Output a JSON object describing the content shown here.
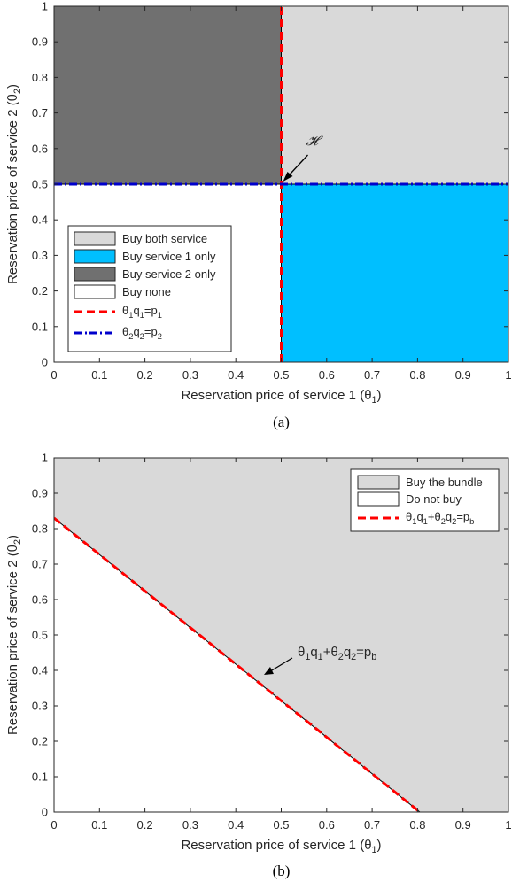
{
  "chart_data": [
    {
      "type": "area",
      "caption": "(a)",
      "xlabel": "Reservation price of service 1",
      "xlabel_symbol": "θ",
      "xlabel_sub": "1",
      "ylabel": "Reservation price of service 2",
      "ylabel_symbol": "θ",
      "ylabel_sub": "2",
      "xlim": [
        0,
        1
      ],
      "ylim": [
        0,
        1
      ],
      "xticks": [
        "0",
        "0.1",
        "0.2",
        "0.3",
        "0.4",
        "0.5",
        "0.6",
        "0.7",
        "0.8",
        "0.9",
        "1"
      ],
      "yticks": [
        "0",
        "0.1",
        "0.2",
        "0.3",
        "0.4",
        "0.5",
        "0.6",
        "0.7",
        "0.8",
        "0.9",
        "1"
      ],
      "p1": 0.5,
      "p2": 0.5,
      "regions": [
        {
          "name": "Buy both service",
          "color": "#d9d9d9",
          "x": [
            0.5,
            1
          ],
          "y": [
            0.5,
            1
          ]
        },
        {
          "name": "Buy service 1 only",
          "color": "#00bfff",
          "x": [
            0.5,
            1
          ],
          "y": [
            0,
            0.5
          ]
        },
        {
          "name": "Buy service 2 only",
          "color": "#707070",
          "x": [
            0,
            0.5
          ],
          "y": [
            0.5,
            1
          ]
        },
        {
          "name": "Buy none",
          "color": "#ffffff",
          "x": [
            0,
            0.5
          ],
          "y": [
            0,
            0.5
          ]
        }
      ],
      "lines": [
        {
          "label_parts": [
            [
              "θ",
              ""
            ],
            [
              "1",
              "sub"
            ],
            [
              "q",
              ""
            ],
            [
              "1",
              "sub"
            ],
            [
              "=p",
              ""
            ],
            [
              "1",
              "sub"
            ]
          ],
          "color": "#ff0000",
          "style": "dashed",
          "orientation": "vertical",
          "value": 0.5
        },
        {
          "label_parts": [
            [
              "θ",
              ""
            ],
            [
              "2",
              "sub"
            ],
            [
              "q",
              ""
            ],
            [
              "2",
              "sub"
            ],
            [
              "=p",
              ""
            ],
            [
              "2",
              "sub"
            ]
          ],
          "color": "#0000cc",
          "style": "dashdot",
          "orientation": "horizontal",
          "value": 0.5
        }
      ],
      "annotation": {
        "text": "𝓗",
        "point": [
          0.5,
          0.5
        ]
      },
      "legend": "lower-left",
      "grid": false
    },
    {
      "type": "area",
      "caption": "(b)",
      "xlabel": "Reservation price of service 1",
      "xlabel_symbol": "θ",
      "xlabel_sub": "1",
      "ylabel": "Reservation price of service 2",
      "ylabel_symbol": "θ",
      "ylabel_sub": "2",
      "xlim": [
        0,
        1
      ],
      "ylim": [
        0,
        1
      ],
      "xticks": [
        "0",
        "0.1",
        "0.2",
        "0.3",
        "0.4",
        "0.5",
        "0.6",
        "0.7",
        "0.8",
        "0.9",
        "1"
      ],
      "yticks": [
        "0",
        "0.1",
        "0.2",
        "0.3",
        "0.4",
        "0.5",
        "0.6",
        "0.7",
        "0.8",
        "0.9",
        "1"
      ],
      "boundary": {
        "x": [
          0,
          0.805
        ],
        "y": [
          0.83,
          0
        ]
      },
      "regions": [
        {
          "name": "Buy the bundle",
          "color": "#d9d9d9",
          "side": "above"
        },
        {
          "name": "Do not buy",
          "color": "#ffffff",
          "side": "below"
        }
      ],
      "lines": [
        {
          "label_parts": [
            [
              "θ",
              ""
            ],
            [
              "1",
              "sub"
            ],
            [
              "q",
              ""
            ],
            [
              "1",
              "sub"
            ],
            [
              "+",
              ""
            ],
            [
              "θ",
              ""
            ],
            [
              "2",
              "sub"
            ],
            [
              "q",
              ""
            ],
            [
              "2",
              "sub"
            ],
            [
              "=p",
              ""
            ],
            [
              "b",
              "sub"
            ]
          ],
          "color": "#ff0000",
          "style": "dashed"
        }
      ],
      "annotation": {
        "label_parts": [
          [
            "θ",
            ""
          ],
          [
            "1",
            "sub"
          ],
          [
            "q",
            ""
          ],
          [
            "1",
            "sub"
          ],
          [
            "+",
            ""
          ],
          [
            "θ",
            ""
          ],
          [
            "2",
            "sub"
          ],
          [
            "q",
            ""
          ],
          [
            "2",
            "sub"
          ],
          [
            "=p",
            ""
          ],
          [
            "b",
            "sub"
          ]
        ],
        "point": [
          0.46,
          0.385
        ]
      },
      "legend": "top-right",
      "grid": false
    }
  ]
}
